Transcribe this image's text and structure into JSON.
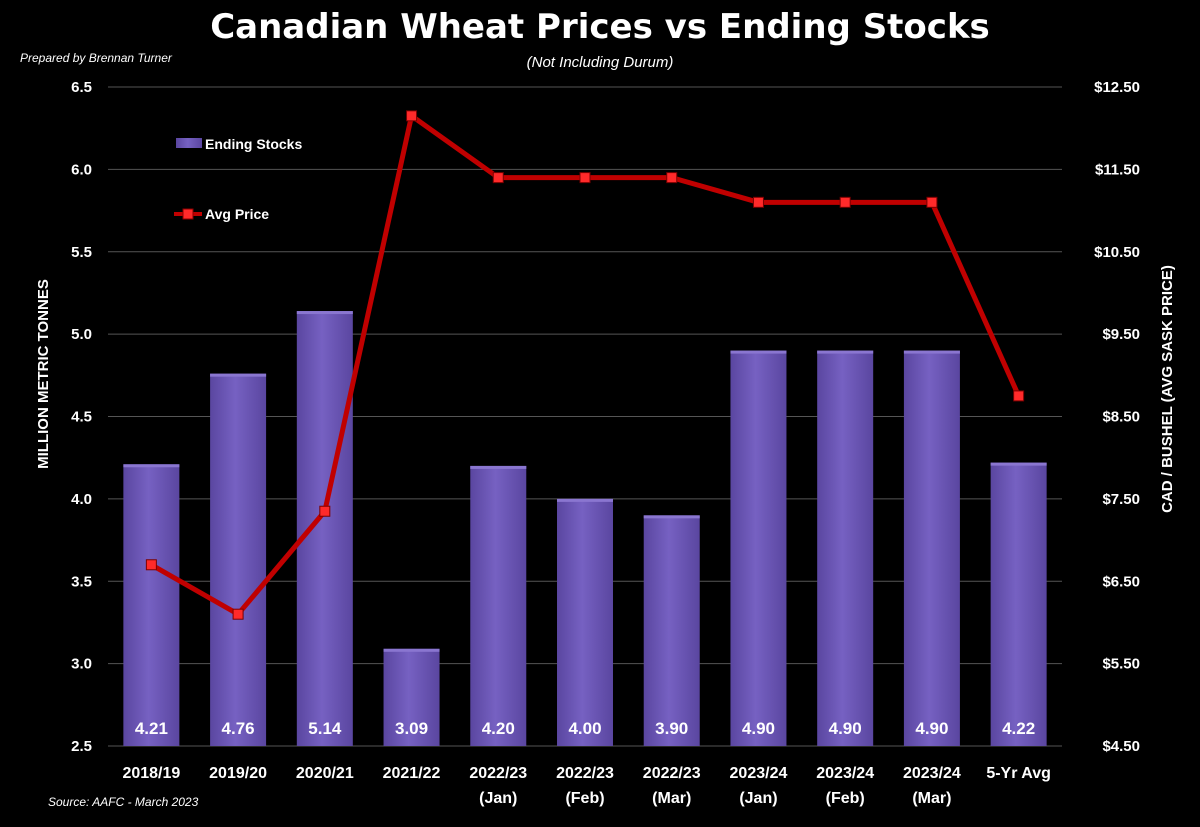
{
  "header": {
    "title": "Canadian Wheat Prices vs Ending Stocks",
    "subtitle": "(Not Including Durum)",
    "prepared_by": "Prepared by Brennan Turner",
    "source": "Source: AAFC - March 2023"
  },
  "colors": {
    "background": "#000000",
    "bar": "#6a55b3",
    "bar_highlight": "#8a76d0",
    "line": "#c00000",
    "marker": "#ff2a2a",
    "grid": "#555555"
  },
  "chart_data": {
    "type": "bar",
    "categories": [
      [
        "2018/19"
      ],
      [
        "2019/20"
      ],
      [
        "2020/21"
      ],
      [
        "2021/22"
      ],
      [
        "2022/23",
        "(Jan)"
      ],
      [
        "2022/23",
        "(Feb)"
      ],
      [
        "2022/23",
        "(Mar)"
      ],
      [
        "2023/24",
        "(Jan)"
      ],
      [
        "2023/24",
        "(Feb)"
      ],
      [
        "2023/24",
        "(Mar)"
      ],
      [
        "5-Yr Avg"
      ]
    ],
    "series": [
      {
        "name": "Ending Stocks",
        "type": "bar",
        "axis": "left",
        "values": [
          4.21,
          4.76,
          5.14,
          3.09,
          4.2,
          4.0,
          3.9,
          4.9,
          4.9,
          4.9,
          4.22
        ],
        "labels": [
          "4.21",
          "4.76",
          "5.14",
          "3.09",
          "4.20",
          "4.00",
          "3.90",
          "4.90",
          "4.90",
          "4.90",
          "4.22"
        ]
      },
      {
        "name": "Avg Price",
        "type": "line",
        "axis": "right",
        "values": [
          6.7,
          6.1,
          7.35,
          12.15,
          11.4,
          11.4,
          11.4,
          11.1,
          11.1,
          11.1,
          8.75
        ]
      }
    ],
    "left_axis": {
      "label": "MILLION METRIC TONNES",
      "ylim": [
        2.5,
        6.5
      ],
      "ticks": [
        2.5,
        3.0,
        3.5,
        4.0,
        4.5,
        5.0,
        5.5,
        6.0,
        6.5
      ],
      "tick_labels": [
        "2.5",
        "3.0",
        "3.5",
        "4.0",
        "4.5",
        "5.0",
        "5.5",
        "6.0",
        "6.5"
      ]
    },
    "right_axis": {
      "label": "CAD / BUSHEL (AVG SASK PRICE)",
      "ylim": [
        4.5,
        12.5
      ],
      "ticks": [
        4.5,
        5.5,
        6.5,
        7.5,
        8.5,
        9.5,
        10.5,
        11.5,
        12.5
      ],
      "tick_labels": [
        "$4.50",
        "$5.50",
        "$6.50",
        "$7.50",
        "$8.50",
        "$9.50",
        "$10.50",
        "$11.50",
        "$12.50"
      ]
    },
    "grid": true,
    "legend": "top-left"
  }
}
